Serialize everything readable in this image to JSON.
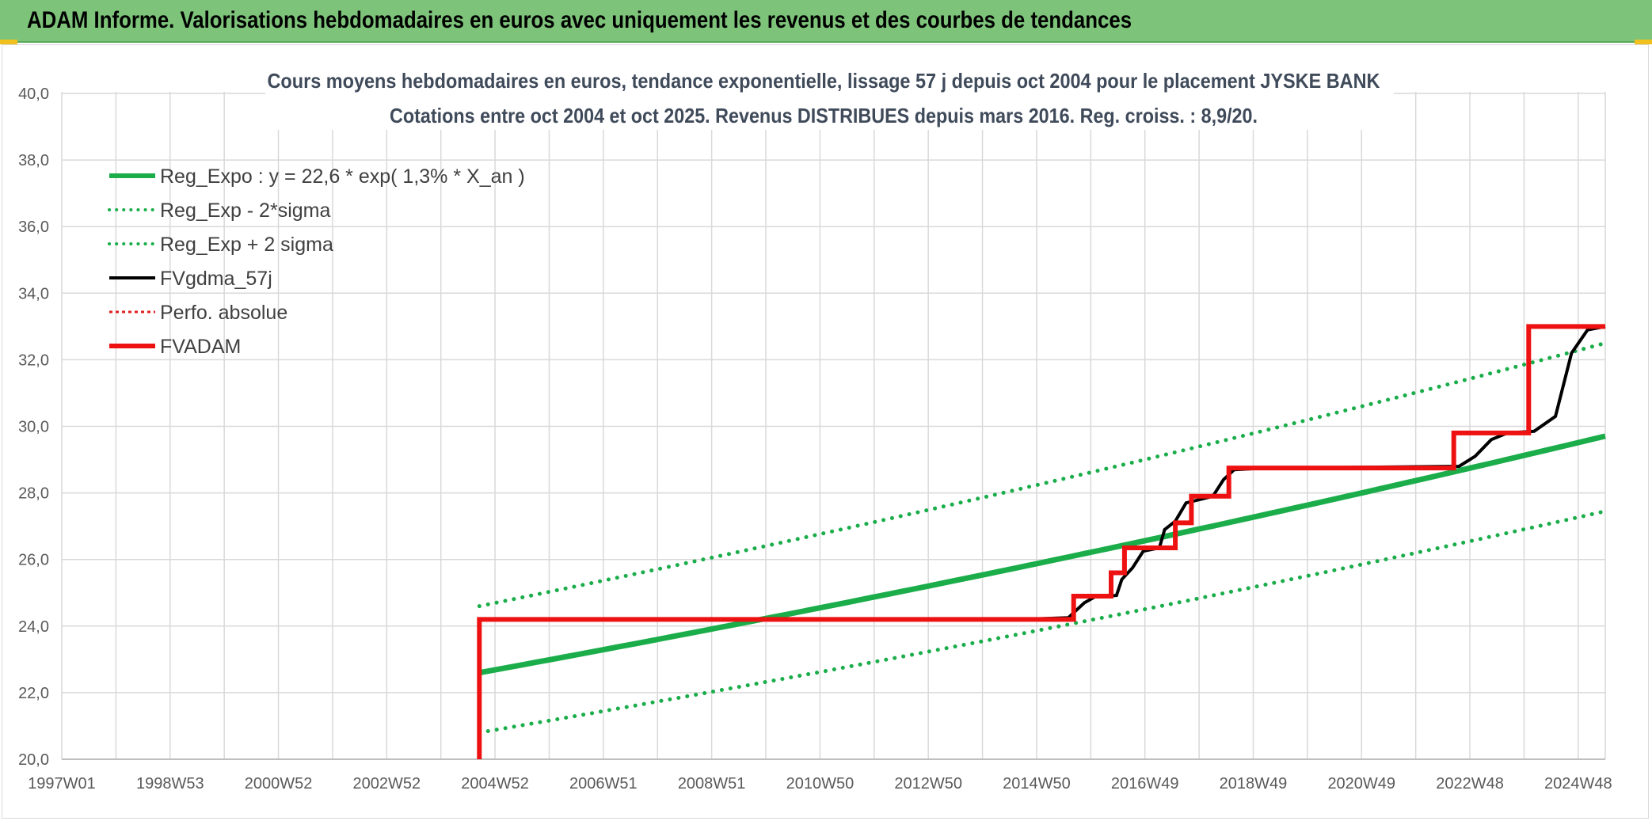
{
  "header": {
    "title": "ADAM Informe. Valorisations hebdomadaires en euros avec uniquement les revenus et des courbes de tendances"
  },
  "colors": {
    "header_bg": "#7dc47a",
    "reg_expo": "#1aad4a",
    "fvgdma": "#000000",
    "fvadam": "#ee1111",
    "perfo": "#e02020",
    "grid": "#d9d9d9"
  },
  "chart_data": {
    "type": "line",
    "title_lines": [
      "Cours moyens hebdomadaires en euros, tendance exponentielle, lissage 57 j depuis oct 2004 pour le placement JYSKE BANK",
      "Cotations entre oct 2004 et oct 2025. Revenus DISTRIBUES depuis mars 2016. Reg. croiss. : 8,9/20."
    ],
    "x_tick_labels": [
      "1997W01",
      "1998W53",
      "2000W52",
      "2002W52",
      "2004W52",
      "2006W51",
      "2008W51",
      "2010W50",
      "2012W50",
      "2014W50",
      "2016W49",
      "2018W49",
      "2020W49",
      "2022W48",
      "2024W48"
    ],
    "x_range": [
      1997.0,
      2025.83
    ],
    "y_range": [
      20,
      40
    ],
    "y_ticks": [
      "20,0",
      "22,0",
      "24,0",
      "26,0",
      "28,0",
      "30,0",
      "32,0",
      "34,0",
      "36,0",
      "38,0",
      "40,0"
    ],
    "grid": true,
    "legend_position": "top-left",
    "series": [
      {
        "name": "Reg_Expo : y = 22,6 * exp( 1,3% *  X_an )",
        "style": "solid-thick",
        "color": "#1aad4a",
        "x": [
          2004.8,
          2025.83
        ],
        "y": [
          22.65,
          29.86
        ],
        "model": "22.6*exp(0.013*(x-2004.8))"
      },
      {
        "name": "Reg_Exp - 2*sigma",
        "style": "dotted",
        "color": "#1aad4a",
        "x": [
          2004.8,
          2025.83
        ],
        "y": [
          20.8,
          27.45
        ]
      },
      {
        "name": "Reg_Exp + 2 sigma",
        "style": "dotted",
        "color": "#1aad4a",
        "x": [
          2004.8,
          2025.83
        ],
        "y": [
          24.6,
          32.5
        ]
      },
      {
        "name": "FVgdma_57j",
        "style": "solid",
        "color": "#000000",
        "x": [
          2014.9,
          2015.8,
          2016.1,
          2016.3,
          2016.7,
          2016.8,
          2017.0,
          2017.2,
          2017.5,
          2017.6,
          2017.8,
          2018.0,
          2018.5,
          2018.7,
          2018.9,
          2019.5,
          2019.8,
          2020.0,
          2023.1,
          2023.4,
          2023.7,
          2024.0,
          2024.5,
          2024.9,
          2025.2,
          2025.5,
          2025.83
        ],
        "y": [
          24.2,
          24.25,
          24.7,
          24.88,
          24.92,
          25.4,
          25.75,
          26.25,
          26.35,
          26.9,
          27.15,
          27.7,
          27.9,
          28.4,
          28.7,
          28.75,
          28.75,
          28.75,
          28.8,
          29.1,
          29.6,
          29.8,
          29.85,
          30.3,
          32.2,
          32.9,
          33.0
        ]
      },
      {
        "name": "Perfo. absolue",
        "style": "dotted",
        "color": "#e02020",
        "x": [],
        "y": []
      },
      {
        "name": "FVADAM",
        "style": "step-thick",
        "color": "#ee1111",
        "x": [
          2004.8,
          2004.8,
          2015.9,
          2015.9,
          2016.6,
          2016.6,
          2016.85,
          2016.85,
          2017.0,
          2017.0,
          2017.8,
          2017.8,
          2018.1,
          2018.1,
          2018.8,
          2018.8,
          2019.1,
          2019.1,
          2023.0,
          2023.0,
          2023.9,
          2023.9,
          2024.4,
          2024.4,
          2025.83
        ],
        "y": [
          20.0,
          24.2,
          24.2,
          24.9,
          24.9,
          25.6,
          25.6,
          26.35,
          26.35,
          26.35,
          26.35,
          27.1,
          27.1,
          27.9,
          27.9,
          28.75,
          28.75,
          28.75,
          28.75,
          29.8,
          29.8,
          29.8,
          29.8,
          33.0,
          33.0
        ]
      }
    ]
  }
}
